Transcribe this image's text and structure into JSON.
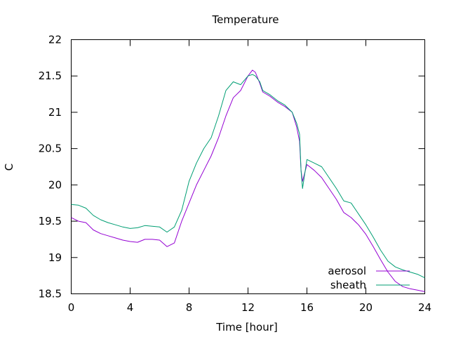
{
  "chart_data": {
    "type": "line",
    "title": "Temperature",
    "xlabel": "Time [hour]",
    "ylabel": "C",
    "xlim": [
      0,
      24
    ],
    "ylim": [
      18.5,
      22
    ],
    "xticks": [
      0,
      4,
      8,
      12,
      16,
      20,
      24
    ],
    "xtick_labels": [
      "0",
      "4",
      "8",
      "12",
      "16",
      "20",
      "24"
    ],
    "yticks": [
      18.5,
      19,
      19.5,
      20,
      20.5,
      21,
      21.5,
      22
    ],
    "ytick_labels": [
      "18.5",
      "19",
      "19.5",
      "20",
      "20.5",
      "21",
      "21.5",
      "22"
    ],
    "grid": false,
    "legend_position": "bottom-right",
    "series": [
      {
        "name": "aerosol",
        "color": "#9400d3",
        "x": [
          0,
          0.5,
          1,
          1.5,
          2,
          2.5,
          3,
          3.5,
          4,
          4.5,
          5,
          5.5,
          6,
          6.5,
          7,
          7.5,
          8,
          8.5,
          9,
          9.5,
          10,
          10.5,
          11,
          11.5,
          12,
          12.3,
          12.5,
          12.8,
          13,
          13.5,
          14,
          14.5,
          15,
          15.3,
          15.5,
          15.6,
          15.7,
          16,
          16.5,
          17,
          17.5,
          18,
          18.5,
          19,
          19.5,
          20,
          20.5,
          21,
          21.5,
          22,
          22.5,
          23,
          23.5,
          24
        ],
        "y": [
          19.55,
          19.5,
          19.48,
          19.38,
          19.33,
          19.3,
          19.27,
          19.24,
          19.22,
          19.21,
          19.25,
          19.25,
          19.24,
          19.15,
          19.2,
          19.5,
          19.75,
          20.0,
          20.2,
          20.4,
          20.65,
          20.95,
          21.2,
          21.3,
          21.5,
          21.58,
          21.55,
          21.4,
          21.28,
          21.22,
          21.14,
          21.08,
          21.0,
          20.8,
          20.6,
          20.2,
          20.05,
          20.28,
          20.2,
          20.1,
          19.95,
          19.8,
          19.62,
          19.55,
          19.45,
          19.32,
          19.15,
          18.97,
          18.8,
          18.67,
          18.6,
          18.57,
          18.55,
          18.53
        ]
      },
      {
        "name": "sheath",
        "color": "#009e73",
        "x": [
          0,
          0.5,
          1,
          1.5,
          2,
          2.5,
          3,
          3.5,
          4,
          4.5,
          5,
          5.5,
          6,
          6.5,
          7,
          7.5,
          8,
          8.5,
          9,
          9.5,
          10,
          10.5,
          11,
          11.5,
          12,
          12.3,
          12.5,
          12.8,
          13,
          13.5,
          14,
          14.5,
          15,
          15.3,
          15.5,
          15.6,
          15.7,
          16,
          16.5,
          17,
          17.5,
          18,
          18.5,
          19,
          19.5,
          20,
          20.5,
          21,
          21.5,
          22,
          22.5,
          23,
          23.5,
          24
        ],
        "y": [
          19.73,
          19.72,
          19.68,
          19.58,
          19.52,
          19.48,
          19.45,
          19.42,
          19.4,
          19.41,
          19.44,
          19.43,
          19.42,
          19.35,
          19.42,
          19.65,
          20.05,
          20.3,
          20.5,
          20.65,
          20.95,
          21.3,
          21.42,
          21.38,
          21.5,
          21.52,
          21.5,
          21.42,
          21.3,
          21.24,
          21.16,
          21.1,
          21.0,
          20.85,
          20.7,
          20.2,
          19.95,
          20.35,
          20.3,
          20.25,
          20.1,
          19.95,
          19.78,
          19.75,
          19.6,
          19.45,
          19.28,
          19.1,
          18.95,
          18.87,
          18.83,
          18.8,
          18.77,
          18.72
        ]
      }
    ]
  }
}
